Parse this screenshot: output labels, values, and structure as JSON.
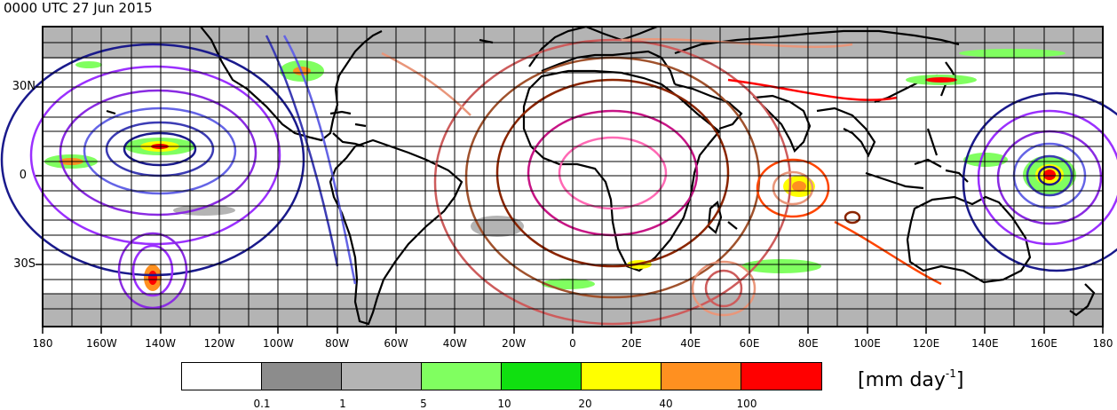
{
  "title": "0000 UTC 27 Jun 2015",
  "lat_labels": [
    "30N",
    "0",
    "30S"
  ],
  "lon_labels": [
    "180",
    "160W",
    "140W",
    "120W",
    "100W",
    "80W",
    "60W",
    "40W",
    "20W",
    "0",
    "20E",
    "40E",
    "60E",
    "80E",
    "100E",
    "120E",
    "140E",
    "160E",
    "180"
  ],
  "colorbar": {
    "ticks": [
      "0.1",
      "1",
      "5",
      "10",
      "20",
      "40",
      "100"
    ],
    "colors": [
      "#ffffff",
      "#8c8c8c",
      "#b4b4b4",
      "#80ff60",
      "#10e010",
      "#ffff00",
      "#ff9020",
      "#ff0000"
    ],
    "units_main": "[mm day",
    "units_exp": "-1",
    "units_close": "]"
  },
  "map_colors": {
    "masked_band": "#b4b4b4",
    "grid": "#000000",
    "coast": "#000000"
  }
}
